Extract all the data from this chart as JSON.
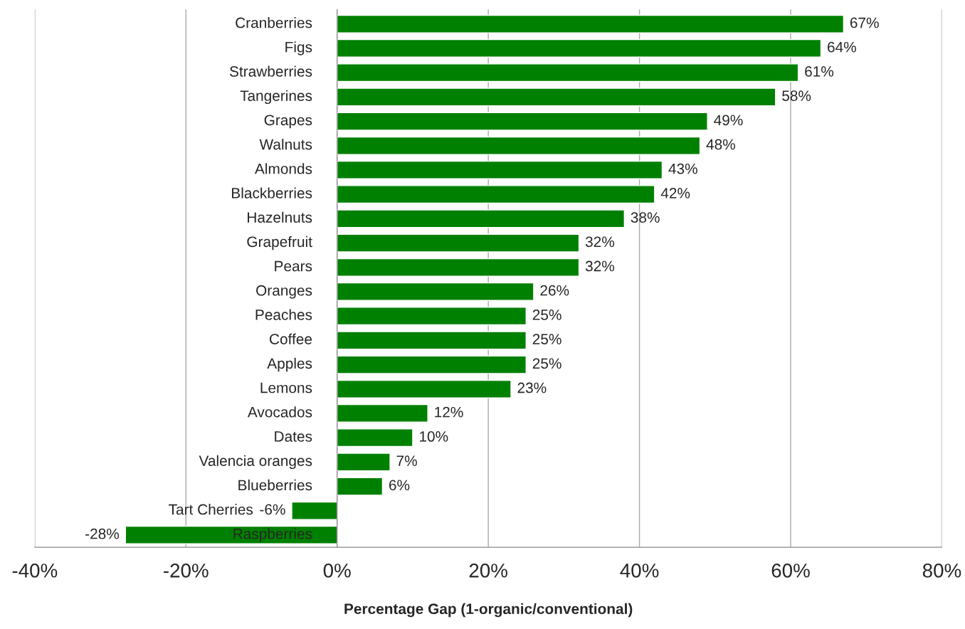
{
  "chart_data": {
    "type": "bar",
    "orientation": "horizontal",
    "xlabel": "Percentage Gap (1-organic/conventional)",
    "categories": [
      "Cranberries",
      "Figs",
      "Strawberries",
      "Tangerines",
      "Grapes",
      "Walnuts",
      "Almonds",
      "Blackberries",
      "Hazelnuts",
      "Grapefruit",
      "Pears",
      "Oranges",
      "Peaches",
      "Coffee",
      "Apples",
      "Lemons",
      "Avocados",
      "Dates",
      "Valencia oranges",
      "Blueberries",
      "Tart Cherries",
      "Raspberries"
    ],
    "values": [
      67,
      64,
      61,
      58,
      49,
      48,
      43,
      42,
      38,
      32,
      32,
      26,
      25,
      25,
      25,
      23,
      12,
      10,
      7,
      6,
      -6,
      -28
    ],
    "value_labels": [
      "67%",
      "64%",
      "61%",
      "58%",
      "49%",
      "48%",
      "43%",
      "42%",
      "38%",
      "32%",
      "32%",
      "26%",
      "25%",
      "25%",
      "25%",
      "23%",
      "12%",
      "10%",
      "7%",
      "6%",
      "-6%",
      "-28%"
    ],
    "color": "#008000",
    "xlim": [
      -40,
      80
    ],
    "xticks": [
      {
        "value": -40,
        "label": "-40%"
      },
      {
        "value": -20,
        "label": "-20%"
      },
      {
        "value": 0,
        "label": "0%"
      },
      {
        "value": 20,
        "label": "20%"
      },
      {
        "value": 40,
        "label": "40%"
      },
      {
        "value": 60,
        "label": "60%"
      },
      {
        "value": 80,
        "label": "80%"
      }
    ],
    "grid": "x"
  }
}
